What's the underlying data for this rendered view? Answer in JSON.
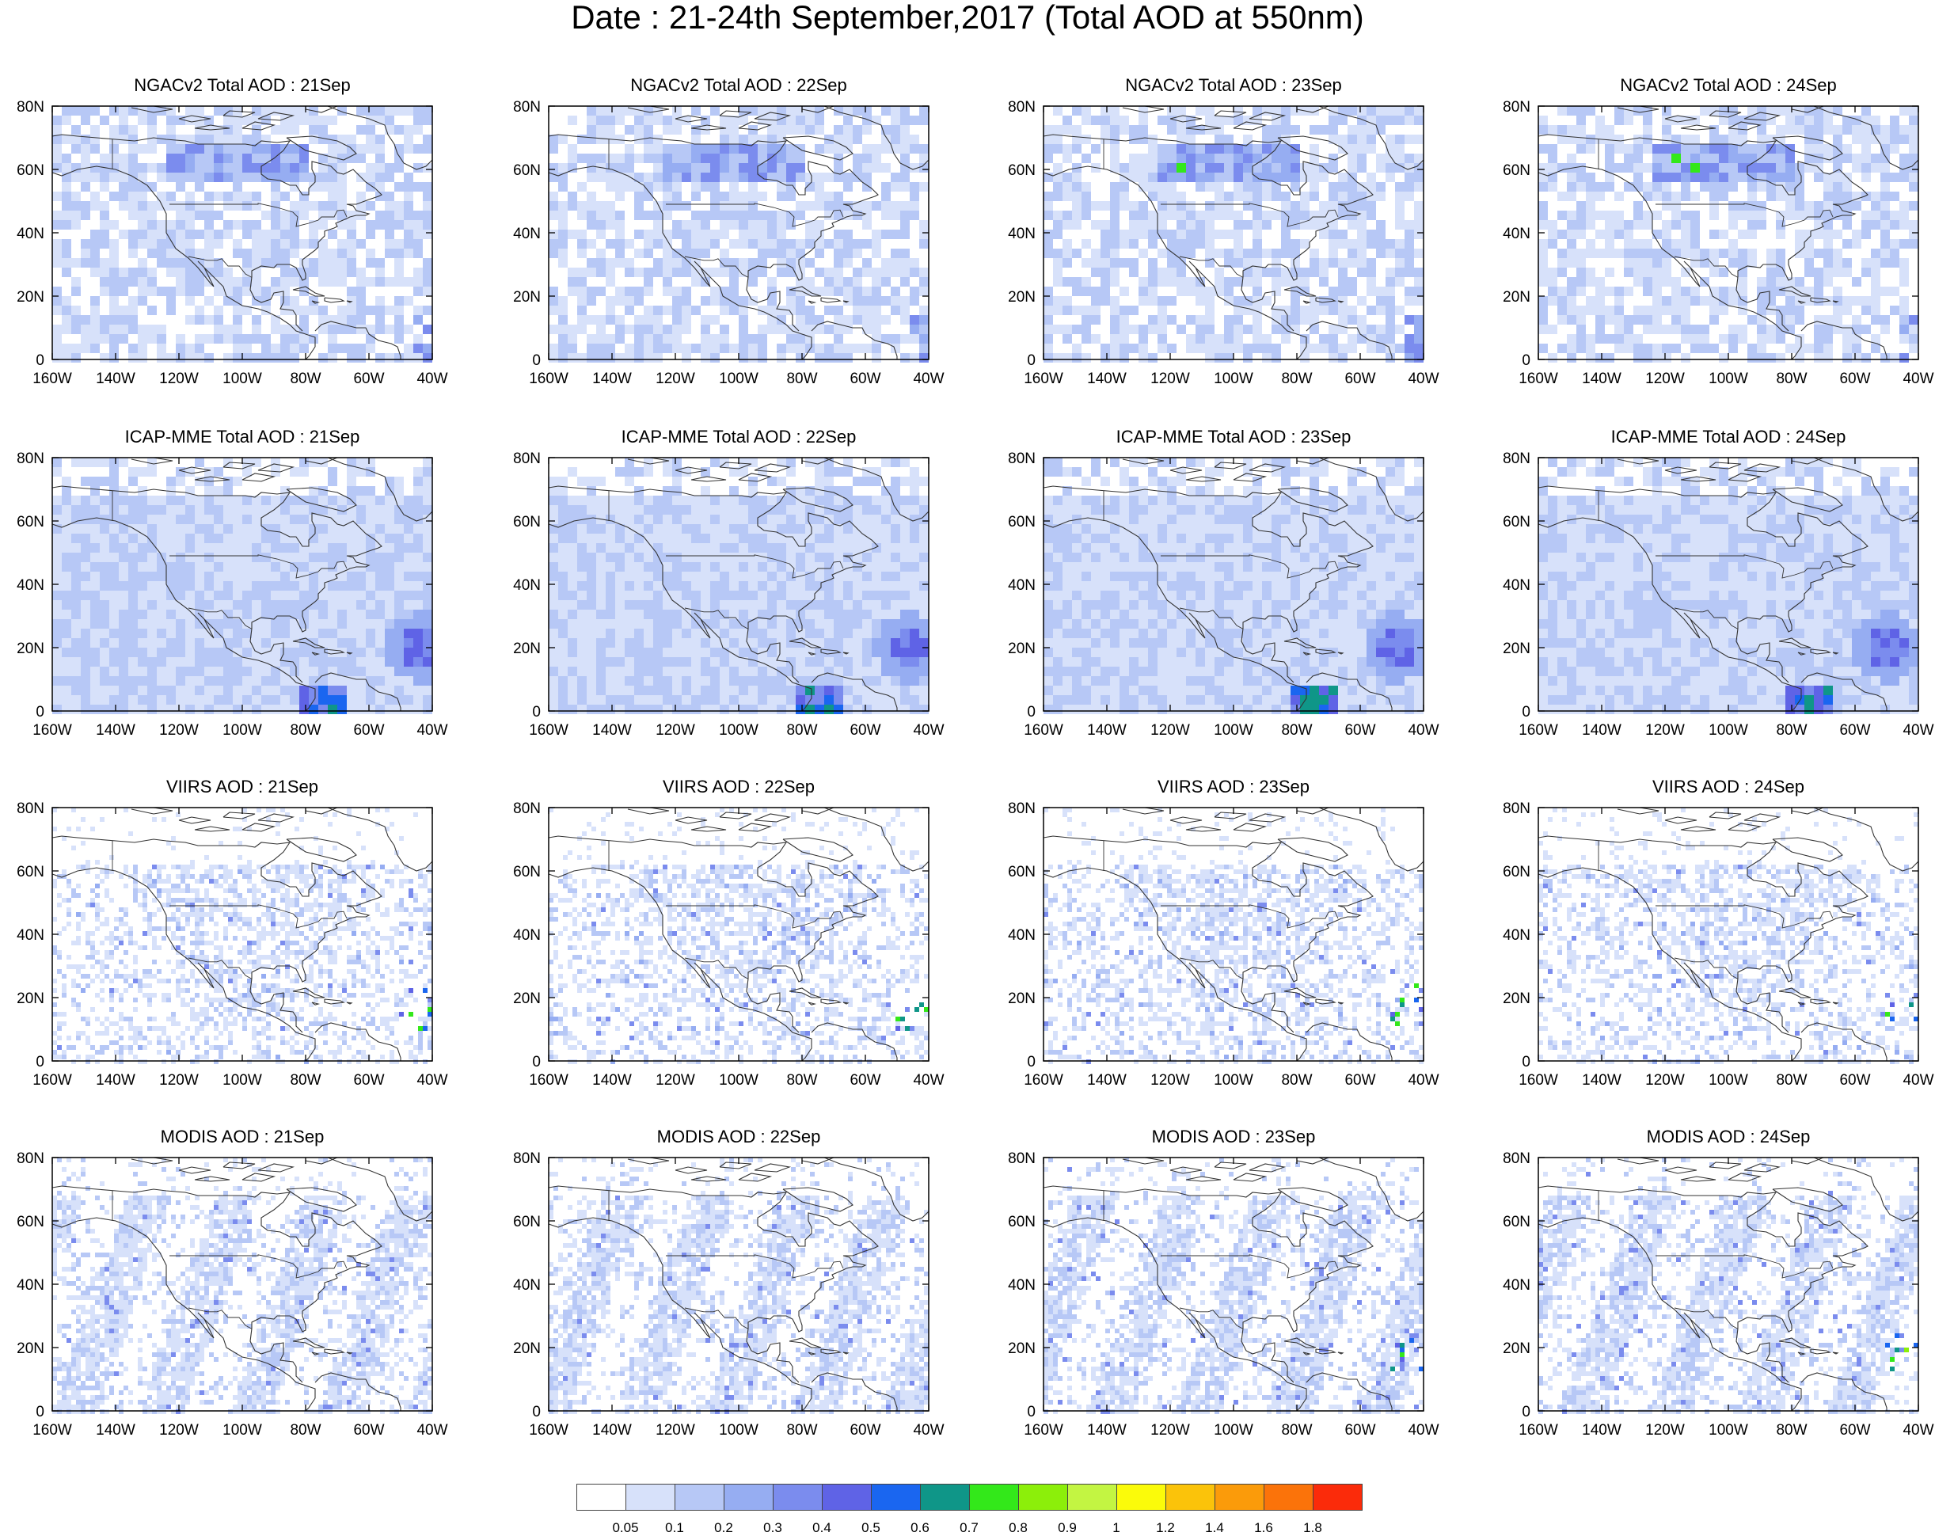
{
  "title": "Date : 21-24th September,2017 (Total AOD at 550nm)",
  "chart_data": {
    "type": "heatmap",
    "map_region": "North America",
    "x_tick_labels": [
      "160W",
      "140W",
      "120W",
      "100W",
      "80W",
      "60W",
      "40W"
    ],
    "y_tick_labels": [
      "80N",
      "60N",
      "40N",
      "20N",
      "0"
    ],
    "xlim": [
      -160,
      -40
    ],
    "ylim": [
      0,
      80
    ],
    "panels": [
      {
        "title": "NGACv2 Total AOD : 21Sep",
        "row": 0,
        "col": 0
      },
      {
        "title": "NGACv2 Total AOD : 22Sep",
        "row": 0,
        "col": 1
      },
      {
        "title": "NGACv2 Total AOD : 23Sep",
        "row": 0,
        "col": 2
      },
      {
        "title": "NGACv2 Total AOD : 24Sep",
        "row": 0,
        "col": 3
      },
      {
        "title": "ICAP-MME Total AOD : 21Sep",
        "row": 1,
        "col": 0
      },
      {
        "title": "ICAP-MME Total AOD : 22Sep",
        "row": 1,
        "col": 1
      },
      {
        "title": "ICAP-MME Total AOD : 23Sep",
        "row": 1,
        "col": 2
      },
      {
        "title": "ICAP-MME Total AOD : 24Sep",
        "row": 1,
        "col": 3
      },
      {
        "title": "VIIRS AOD : 21Sep",
        "row": 2,
        "col": 0
      },
      {
        "title": "VIIRS AOD : 22Sep",
        "row": 2,
        "col": 1
      },
      {
        "title": "VIIRS AOD : 23Sep",
        "row": 2,
        "col": 2
      },
      {
        "title": "VIIRS AOD : 24Sep",
        "row": 2,
        "col": 3
      },
      {
        "title": "MODIS AOD : 21Sep",
        "row": 3,
        "col": 0
      },
      {
        "title": "MODIS AOD : 22Sep",
        "row": 3,
        "col": 1
      },
      {
        "title": "MODIS AOD : 23Sep",
        "row": 3,
        "col": 2
      },
      {
        "title": "MODIS AOD : 24Sep",
        "row": 3,
        "col": 3
      }
    ],
    "colorbar": {
      "labels": [
        "0.05",
        "0.1",
        "0.2",
        "0.3",
        "0.4",
        "0.5",
        "0.6",
        "0.7",
        "0.8",
        "0.9",
        "1",
        "1.2",
        "1.4",
        "1.6",
        "1.8"
      ],
      "colors": [
        "#ffffff",
        "#d7e1fa",
        "#b7c8f6",
        "#96adf2",
        "#7b8cee",
        "#5f63e6",
        "#1a66f0",
        "#0f9688",
        "#33e81a",
        "#8cef0a",
        "#c3f542",
        "#fbfb0a",
        "#fbc30a",
        "#fb9b0a",
        "#fb730a",
        "#fb2b0a"
      ]
    }
  }
}
